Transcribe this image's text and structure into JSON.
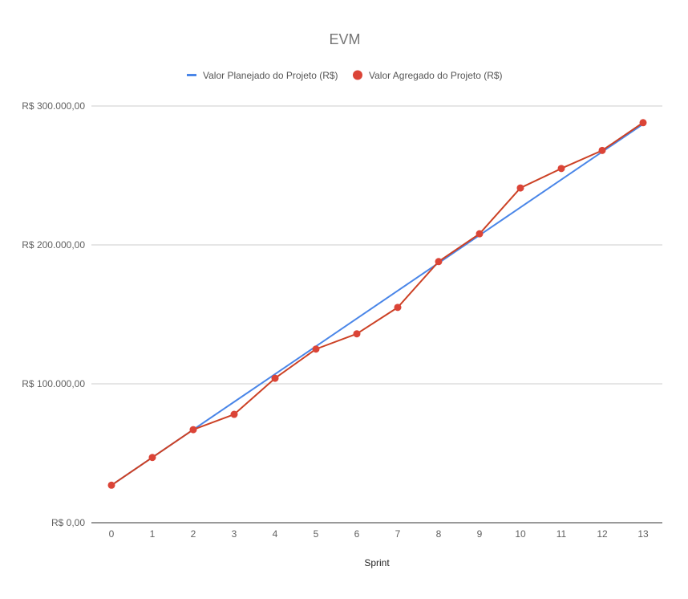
{
  "chart_data": {
    "type": "line",
    "title": "EVM",
    "xlabel": "Sprint",
    "ylabel": "",
    "categories": [
      "0",
      "1",
      "2",
      "3",
      "4",
      "5",
      "6",
      "7",
      "8",
      "9",
      "10",
      "11",
      "12",
      "13"
    ],
    "ylim": [
      0,
      300000
    ],
    "yticks": [
      {
        "value": 0,
        "label": "R$ 0,00"
      },
      {
        "value": 100000,
        "label": "R$ 100.000,00"
      },
      {
        "value": 200000,
        "label": "R$ 200.000,00"
      },
      {
        "value": 300000,
        "label": "R$ 300.000,00"
      }
    ],
    "grid": true,
    "legend_position": "top",
    "series": [
      {
        "name": "Valor Planejado do Projeto (R$)",
        "color": "#4a86e8",
        "marker": "none",
        "legend_marker": "line",
        "values": [
          27000,
          47000,
          67000,
          87000,
          107000,
          127000,
          147000,
          167000,
          187000,
          207000,
          227000,
          247000,
          267000,
          287000
        ]
      },
      {
        "name": "Valor Agregado do Projeto (R$)",
        "color": "#cc4125",
        "marker_color": "#db4437",
        "marker": "circle",
        "legend_marker": "circle",
        "values": [
          27000,
          47000,
          67000,
          78000,
          104000,
          125000,
          136000,
          155000,
          188000,
          208000,
          241000,
          255000,
          268000,
          288000
        ]
      }
    ]
  }
}
